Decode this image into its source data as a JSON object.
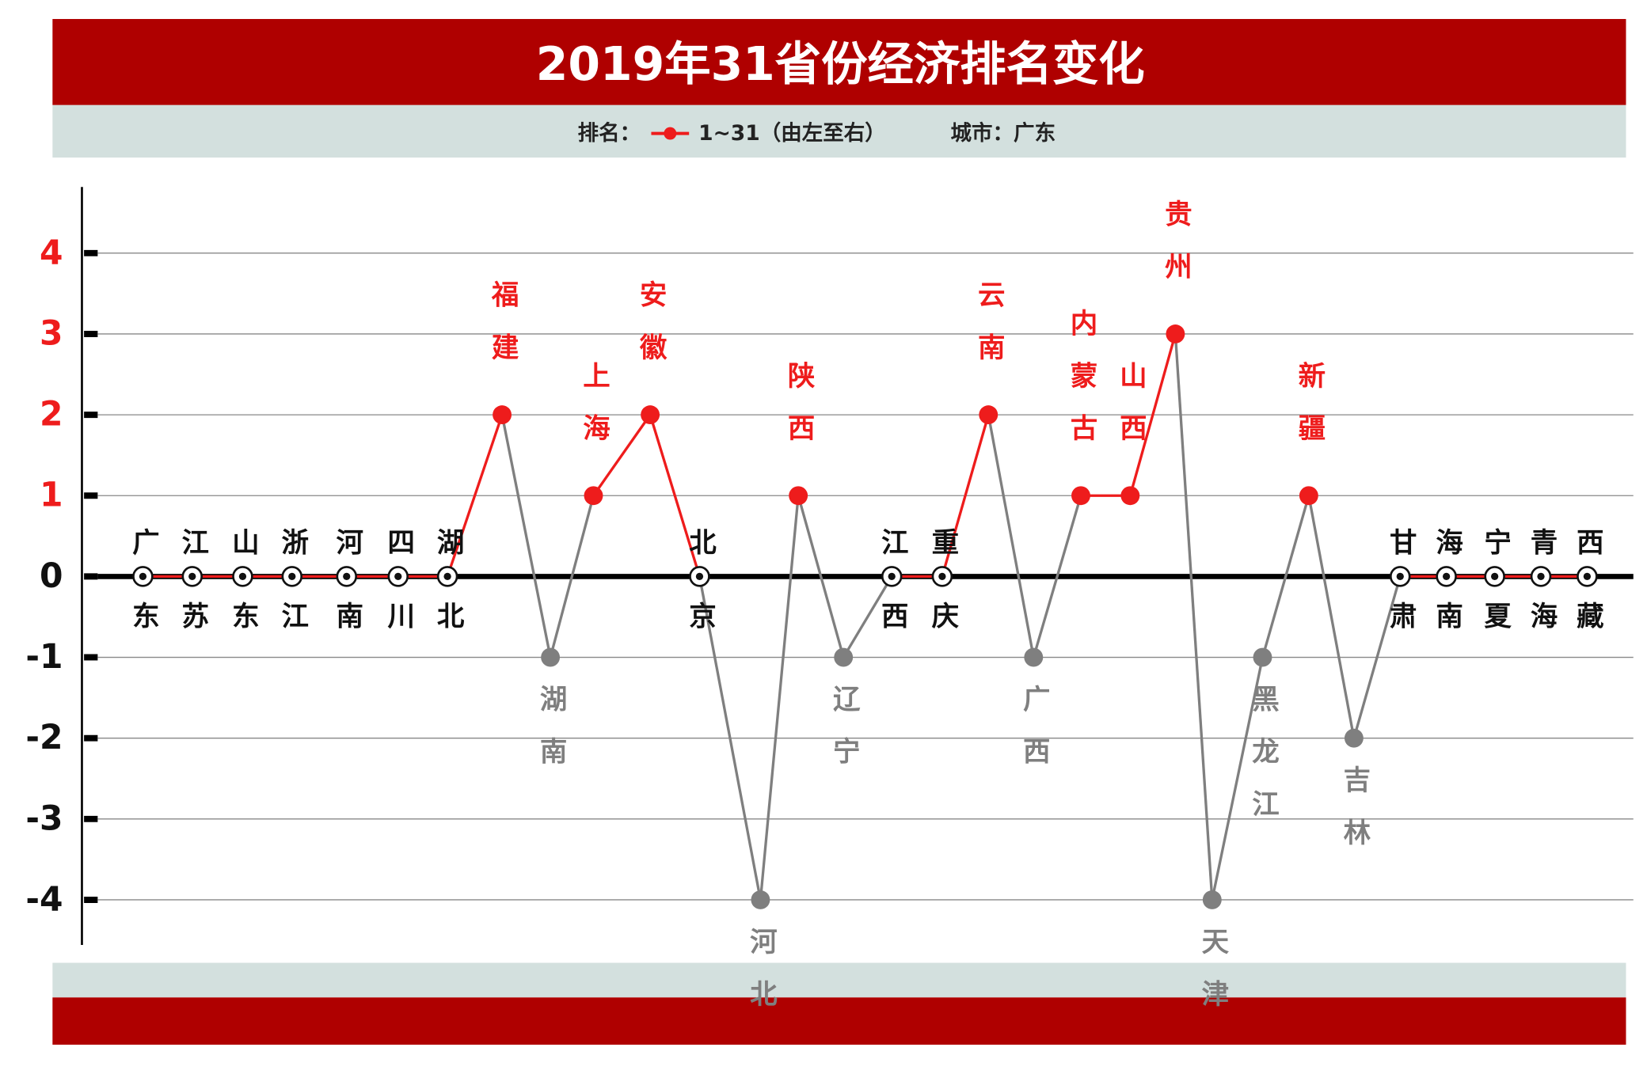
{
  "chart_data": {
    "type": "line",
    "title": "2019年31省份经济排名变化",
    "legend_label": "排名：",
    "subtitle": "城市：广东",
    "categories": [
      "广东",
      "江苏",
      "山东",
      "浙江",
      "河南",
      "四川",
      "湖北",
      "福建",
      "湖南",
      "上海",
      "安徽",
      "北京",
      "河北",
      "陕西",
      "辽宁",
      "江西",
      "重庆",
      "云南",
      "广西",
      "内蒙古",
      "山西",
      "贵州",
      "天津",
      "黑龙江",
      "新疆",
      "吉林",
      "甘肃",
      "海南",
      "宁夏",
      "青海",
      "西藏"
    ],
    "series": [
      {
        "name": "1~31（由左至右）",
        "color": "#ee1c1c",
        "negative_color": "#7f7f7f",
        "values": [
          0,
          0,
          0,
          0,
          0,
          0,
          0,
          2,
          -1,
          1,
          2,
          0,
          -4,
          1,
          -1,
          0,
          0,
          2,
          -1,
          1,
          1,
          3,
          -4,
          -1,
          1,
          -2,
          0,
          0,
          0,
          0,
          0
        ]
      }
    ],
    "ylim": [
      -4.5,
      4.5
    ],
    "yticks": [
      -4,
      -3,
      -2,
      -1,
      0,
      1,
      2,
      3,
      4
    ],
    "grid": true
  }
}
